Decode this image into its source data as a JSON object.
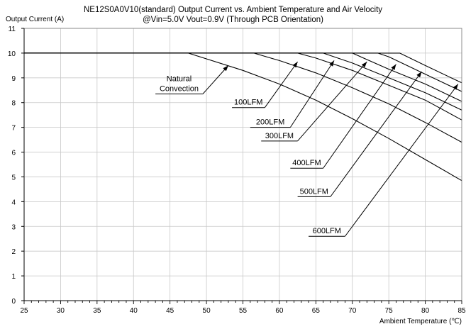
{
  "chart_data": {
    "type": "line",
    "title": "NE12S0A0V10(standard)  Output Current vs. Ambient Temperature and Air Velocity",
    "subtitle": "@Vin=5.0V Vout=0.9V (Through PCB Orientation)",
    "ylabel": "Output Current (A)",
    "xlabel": "Ambient Temperature (℃)",
    "xlim": [
      25,
      85
    ],
    "ylim": [
      0,
      11
    ],
    "xticks": [
      "25",
      "30",
      "35",
      "40",
      "45",
      "50",
      "55",
      "60",
      "65",
      "70",
      "75",
      "80",
      "85"
    ],
    "yticks": [
      "0",
      "1",
      "2",
      "3",
      "4",
      "5",
      "6",
      "7",
      "8",
      "9",
      "10",
      "11"
    ],
    "grid": true,
    "series": [
      {
        "name": "Natural Convection",
        "x": [
          25,
          47.5,
          55,
          60,
          65,
          70,
          75,
          80,
          85
        ],
        "y": [
          10,
          10,
          9.3,
          8.75,
          8.1,
          7.35,
          6.55,
          5.7,
          4.85
        ]
      },
      {
        "name": "100LFM",
        "x": [
          25,
          56.5,
          60,
          65,
          70,
          75,
          80,
          85
        ],
        "y": [
          10,
          10,
          9.7,
          9.2,
          8.6,
          7.95,
          7.2,
          6.4
        ]
      },
      {
        "name": "200LFM",
        "x": [
          25,
          62.5,
          65,
          70,
          75,
          80,
          85
        ],
        "y": [
          10,
          10,
          9.8,
          9.3,
          8.7,
          8.1,
          7.3
        ]
      },
      {
        "name": "300LFM",
        "x": [
          25,
          66,
          70,
          75,
          80,
          85
        ],
        "y": [
          10,
          10,
          9.6,
          9.0,
          8.4,
          7.7
        ]
      },
      {
        "name": "400LFM",
        "x": [
          25,
          70,
          75,
          80,
          85
        ],
        "y": [
          10,
          10,
          9.35,
          8.75,
          8.05
        ]
      },
      {
        "name": "500LFM",
        "x": [
          25,
          73.5,
          75,
          80,
          85
        ],
        "y": [
          10,
          10,
          9.85,
          9.15,
          8.45
        ]
      },
      {
        "name": "600LFM",
        "x": [
          25,
          76.5,
          80,
          85
        ],
        "y": [
          10,
          10,
          9.5,
          8.8
        ]
      }
    ],
    "annotations": [
      {
        "text": [
          "Natural",
          "Convection"
        ],
        "from": [
          49.5,
          8.35
        ],
        "to": [
          53,
          9.5
        ],
        "shelf_x": 43
      },
      {
        "text": [
          "100LFM"
        ],
        "from": [
          58,
          7.8
        ],
        "to": [
          62.5,
          9.65
        ],
        "shelf_x": 53.5
      },
      {
        "text": [
          "200LFM"
        ],
        "from": [
          61.5,
          7.0
        ],
        "to": [
          67.5,
          9.7
        ],
        "shelf_x": 56
      },
      {
        "text": [
          "300LFM"
        ],
        "from": [
          62.5,
          6.45
        ],
        "to": [
          72,
          9.65
        ],
        "shelf_x": 57.5
      },
      {
        "text": [
          "400LFM"
        ],
        "from": [
          66,
          5.35
        ],
        "to": [
          76,
          9.55
        ],
        "shelf_x": 61.5
      },
      {
        "text": [
          "500LFM"
        ],
        "from": [
          67,
          4.2
        ],
        "to": [
          79.5,
          9.25
        ],
        "shelf_x": 62.5
      },
      {
        "text": [
          "600LFM"
        ],
        "from": [
          69,
          2.6
        ],
        "to": [
          84.5,
          8.75
        ],
        "shelf_x": 64
      }
    ]
  }
}
